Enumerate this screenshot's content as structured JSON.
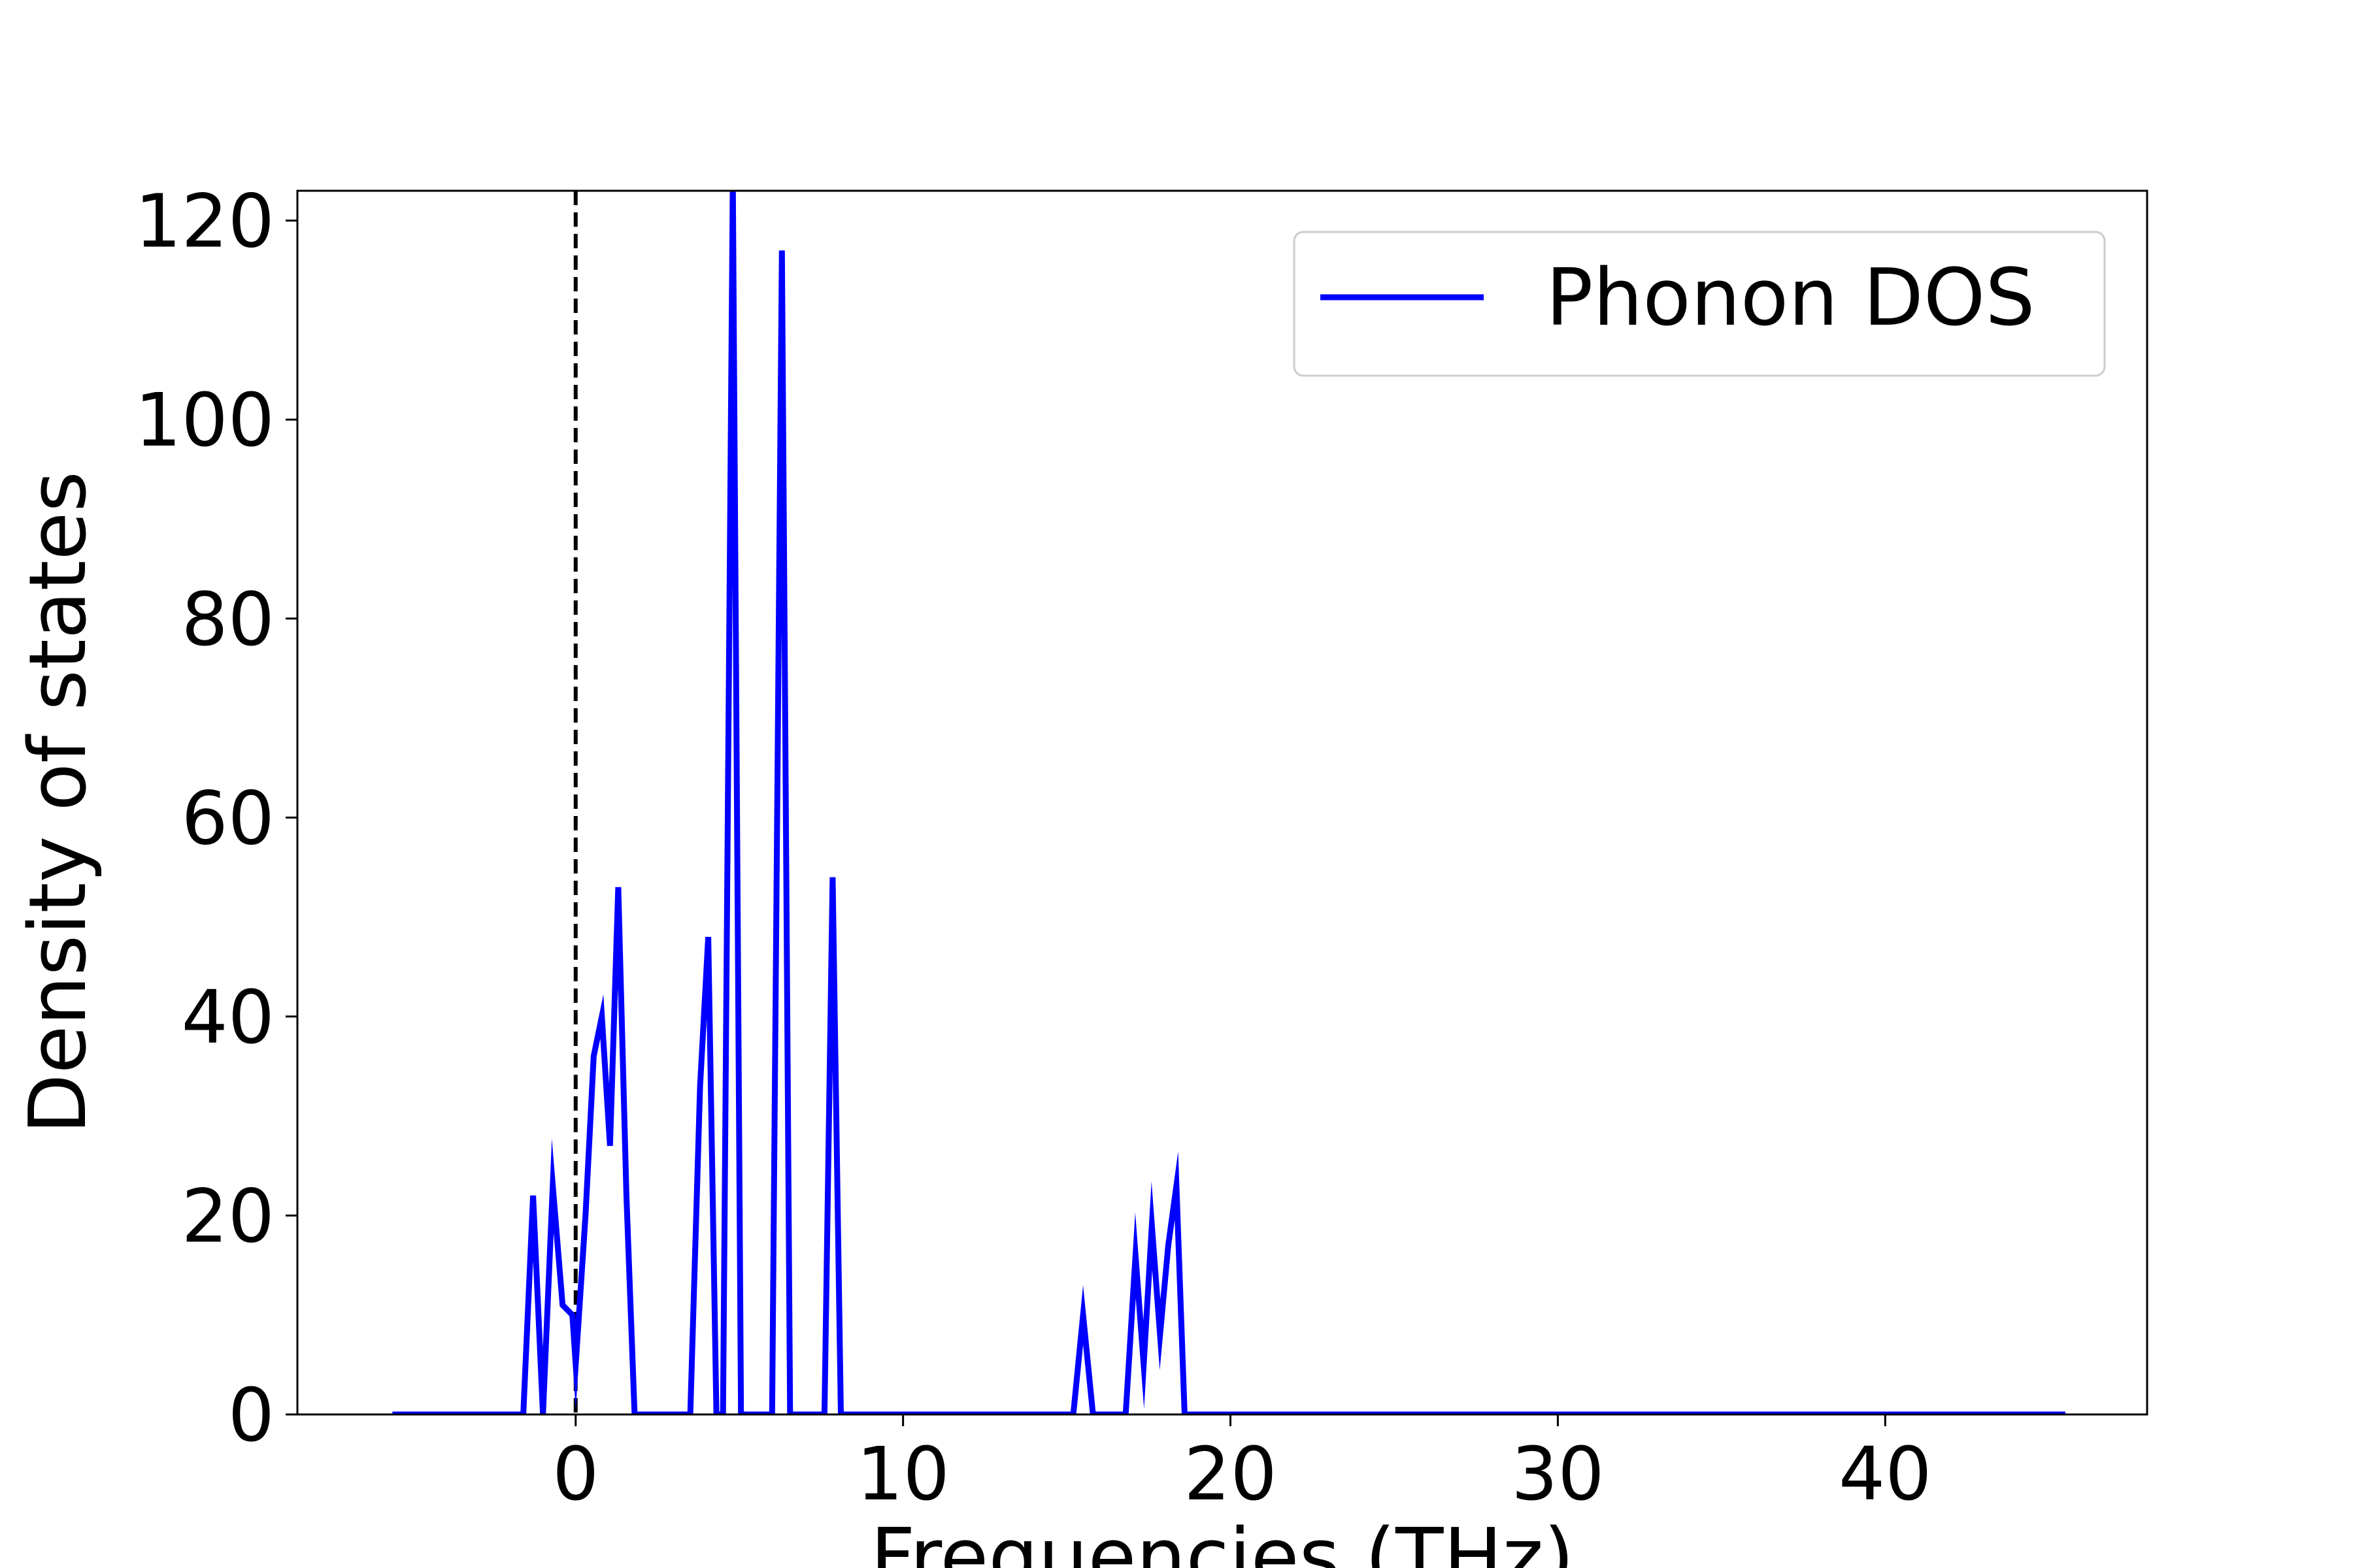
{
  "chart_data": {
    "type": "line",
    "xlabel": "Frequencies (THz)",
    "ylabel": "Density of states",
    "xlim": [
      -8.5,
      48
    ],
    "ylim": [
      0,
      123
    ],
    "xticks": [
      0,
      10,
      20,
      30,
      40
    ],
    "yticks": [
      0,
      20,
      40,
      60,
      80,
      100,
      120
    ],
    "grid": false,
    "legend_position": "top-right",
    "fermi_line_x": 0,
    "series": [
      {
        "name": "Phonon DOS",
        "color": "#0000ff",
        "x": [
          -5.6,
          -1.6,
          -1.3,
          -1.0,
          -0.7,
          -0.4,
          -0.1,
          0.0,
          0.3,
          0.55,
          0.8,
          1.05,
          1.3,
          1.55,
          1.8,
          3.5,
          3.8,
          4.05,
          4.3,
          4.5,
          4.8,
          5.05,
          5.3,
          6.0,
          6.3,
          6.55,
          6.8,
          7.6,
          7.85,
          8.1,
          15.2,
          15.5,
          15.8,
          16.8,
          17.1,
          17.35,
          17.6,
          17.85,
          18.1,
          18.35,
          18.6,
          45.5
        ],
        "y": [
          0,
          0,
          22,
          0,
          23,
          11,
          10,
          5,
          20,
          36,
          40,
          27,
          53,
          22,
          0,
          0,
          33,
          48,
          0,
          0,
          124,
          0,
          0,
          0,
          117,
          0,
          0,
          0,
          54,
          0,
          0,
          10,
          0,
          0,
          16,
          5,
          19,
          8,
          17,
          23,
          0,
          0
        ]
      }
    ]
  }
}
